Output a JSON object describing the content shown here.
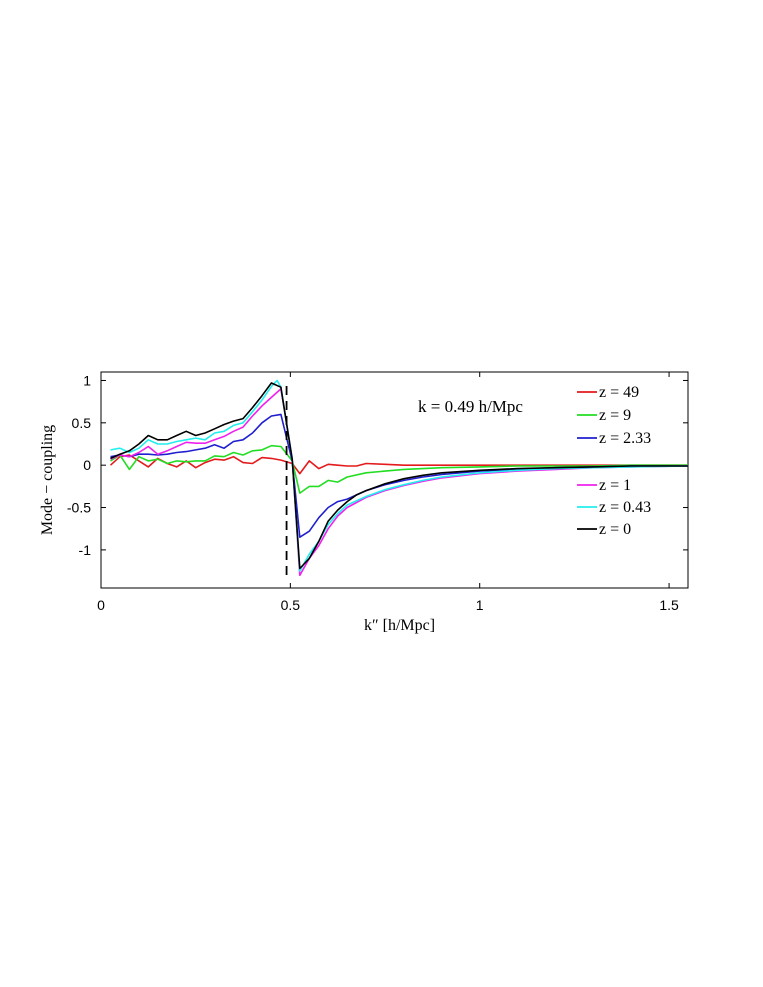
{
  "chart_data": {
    "type": "line",
    "xlabel": "k″  [h/Mpc]",
    "ylabel": "Mode − coupling",
    "xlim": [
      0,
      1.55
    ],
    "ylim": [
      -1.45,
      1.1
    ],
    "xticks": [
      0,
      0.5,
      1,
      1.5
    ],
    "xtick_labels": [
      "0",
      "0.5",
      "1",
      "1.5"
    ],
    "yticks": [
      -1,
      -0.5,
      0,
      0.5,
      1
    ],
    "ytick_labels": [
      "-1",
      "-0.5",
      "0",
      "0.5",
      "1"
    ],
    "grid": false,
    "legend_position": "right",
    "annotation": "k = 0.49 h/Mpc",
    "vline_x": 0.49,
    "series": [
      {
        "name": "z = 49",
        "color": "#e41a1c",
        "x": [
          0.025,
          0.05,
          0.075,
          0.1,
          0.125,
          0.15,
          0.175,
          0.2,
          0.225,
          0.25,
          0.275,
          0.3,
          0.325,
          0.35,
          0.375,
          0.4,
          0.425,
          0.45,
          0.475,
          0.505,
          0.525,
          0.55,
          0.575,
          0.6,
          0.625,
          0.65,
          0.675,
          0.7,
          0.75,
          0.8,
          0.9,
          1.0,
          1.1,
          1.2,
          1.3,
          1.4,
          1.55
        ],
        "y": [
          0.0,
          0.1,
          0.12,
          0.05,
          -0.02,
          0.08,
          0.02,
          -0.02,
          0.05,
          -0.03,
          0.03,
          0.07,
          0.06,
          0.1,
          0.03,
          0.02,
          0.09,
          0.08,
          0.06,
          0.02,
          -0.1,
          0.05,
          -0.04,
          0.01,
          0.0,
          -0.01,
          -0.01,
          0.02,
          0.01,
          0.0,
          0.0,
          0.0,
          0.0,
          0.0,
          0.0,
          0.0,
          0.0
        ]
      },
      {
        "name": "z = 9",
        "color": "#22dd22",
        "x": [
          0.025,
          0.05,
          0.075,
          0.1,
          0.125,
          0.15,
          0.175,
          0.2,
          0.225,
          0.25,
          0.275,
          0.3,
          0.325,
          0.35,
          0.375,
          0.4,
          0.425,
          0.45,
          0.475,
          0.505,
          0.525,
          0.55,
          0.575,
          0.6,
          0.625,
          0.65,
          0.7,
          0.75,
          0.8,
          0.9,
          1.0,
          1.1,
          1.2,
          1.3,
          1.4,
          1.55
        ],
        "y": [
          0.05,
          0.12,
          -0.05,
          0.1,
          0.05,
          0.07,
          0.02,
          0.05,
          0.04,
          0.05,
          0.05,
          0.11,
          0.1,
          0.15,
          0.12,
          0.17,
          0.18,
          0.23,
          0.22,
          0.05,
          -0.33,
          -0.25,
          -0.25,
          -0.18,
          -0.2,
          -0.14,
          -0.09,
          -0.07,
          -0.05,
          -0.03,
          -0.02,
          -0.01,
          -0.01,
          -0.01,
          0.0,
          0.0
        ]
      },
      {
        "name": "z = 2.33",
        "color": "#1f1fcf",
        "x": [
          0.025,
          0.05,
          0.075,
          0.1,
          0.125,
          0.15,
          0.175,
          0.2,
          0.225,
          0.25,
          0.275,
          0.3,
          0.325,
          0.35,
          0.375,
          0.4,
          0.425,
          0.45,
          0.475,
          0.505,
          0.525,
          0.55,
          0.575,
          0.6,
          0.625,
          0.65,
          0.7,
          0.75,
          0.8,
          0.85,
          0.9,
          1.0,
          1.1,
          1.2,
          1.3,
          1.4,
          1.55
        ],
        "y": [
          0.1,
          0.12,
          0.1,
          0.13,
          0.13,
          0.12,
          0.13,
          0.15,
          0.16,
          0.18,
          0.2,
          0.24,
          0.2,
          0.28,
          0.3,
          0.38,
          0.5,
          0.58,
          0.6,
          0.05,
          -0.85,
          -0.78,
          -0.62,
          -0.5,
          -0.43,
          -0.4,
          -0.3,
          -0.23,
          -0.18,
          -0.14,
          -0.11,
          -0.07,
          -0.05,
          -0.03,
          -0.02,
          -0.01,
          -0.01
        ]
      },
      {
        "name": "z = 1",
        "color": "#ee22ee",
        "x": [
          0.025,
          0.05,
          0.075,
          0.1,
          0.125,
          0.15,
          0.175,
          0.2,
          0.225,
          0.25,
          0.275,
          0.3,
          0.325,
          0.35,
          0.375,
          0.4,
          0.425,
          0.45,
          0.475,
          0.505,
          0.525,
          0.55,
          0.575,
          0.6,
          0.625,
          0.65,
          0.7,
          0.75,
          0.8,
          0.85,
          0.9,
          1.0,
          1.1,
          1.2,
          1.3,
          1.4,
          1.55
        ],
        "y": [
          0.07,
          0.12,
          0.1,
          0.15,
          0.22,
          0.13,
          0.17,
          0.22,
          0.27,
          0.26,
          0.26,
          0.3,
          0.34,
          0.4,
          0.45,
          0.58,
          0.7,
          0.8,
          0.9,
          0.08,
          -1.3,
          -1.1,
          -0.95,
          -0.75,
          -0.6,
          -0.5,
          -0.38,
          -0.3,
          -0.24,
          -0.19,
          -0.15,
          -0.1,
          -0.07,
          -0.05,
          -0.03,
          -0.02,
          -0.01
        ]
      },
      {
        "name": "z = 0.43",
        "color": "#22eeee",
        "x": [
          0.025,
          0.05,
          0.075,
          0.1,
          0.125,
          0.15,
          0.175,
          0.2,
          0.225,
          0.25,
          0.275,
          0.3,
          0.325,
          0.35,
          0.375,
          0.4,
          0.425,
          0.45,
          0.465,
          0.475,
          0.505,
          0.525,
          0.55,
          0.575,
          0.6,
          0.625,
          0.65,
          0.7,
          0.75,
          0.8,
          0.85,
          0.9,
          1.0,
          1.1,
          1.2,
          1.3,
          1.4,
          1.55
        ],
        "y": [
          0.18,
          0.2,
          0.15,
          0.2,
          0.3,
          0.25,
          0.25,
          0.28,
          0.3,
          0.32,
          0.3,
          0.38,
          0.4,
          0.47,
          0.5,
          0.63,
          0.77,
          0.93,
          1.0,
          0.92,
          0.07,
          -1.25,
          -1.05,
          -0.9,
          -0.7,
          -0.57,
          -0.47,
          -0.37,
          -0.29,
          -0.23,
          -0.18,
          -0.14,
          -0.09,
          -0.06,
          -0.04,
          -0.03,
          -0.02,
          -0.01
        ]
      },
      {
        "name": "z = 0",
        "color": "#000000",
        "x": [
          0.025,
          0.05,
          0.075,
          0.1,
          0.125,
          0.15,
          0.175,
          0.2,
          0.225,
          0.25,
          0.275,
          0.3,
          0.325,
          0.35,
          0.375,
          0.4,
          0.425,
          0.45,
          0.475,
          0.505,
          0.525,
          0.55,
          0.575,
          0.6,
          0.625,
          0.65,
          0.675,
          0.7,
          0.75,
          0.8,
          0.85,
          0.9,
          1.0,
          1.1,
          1.2,
          1.3,
          1.4,
          1.55
        ],
        "y": [
          0.08,
          0.13,
          0.17,
          0.25,
          0.35,
          0.3,
          0.3,
          0.35,
          0.4,
          0.35,
          0.38,
          0.43,
          0.48,
          0.52,
          0.55,
          0.68,
          0.82,
          0.97,
          0.92,
          0.07,
          -1.22,
          -1.1,
          -0.9,
          -0.66,
          -0.53,
          -0.43,
          -0.35,
          -0.3,
          -0.22,
          -0.16,
          -0.12,
          -0.09,
          -0.06,
          -0.04,
          -0.03,
          -0.02,
          -0.01,
          -0.01
        ]
      }
    ]
  }
}
